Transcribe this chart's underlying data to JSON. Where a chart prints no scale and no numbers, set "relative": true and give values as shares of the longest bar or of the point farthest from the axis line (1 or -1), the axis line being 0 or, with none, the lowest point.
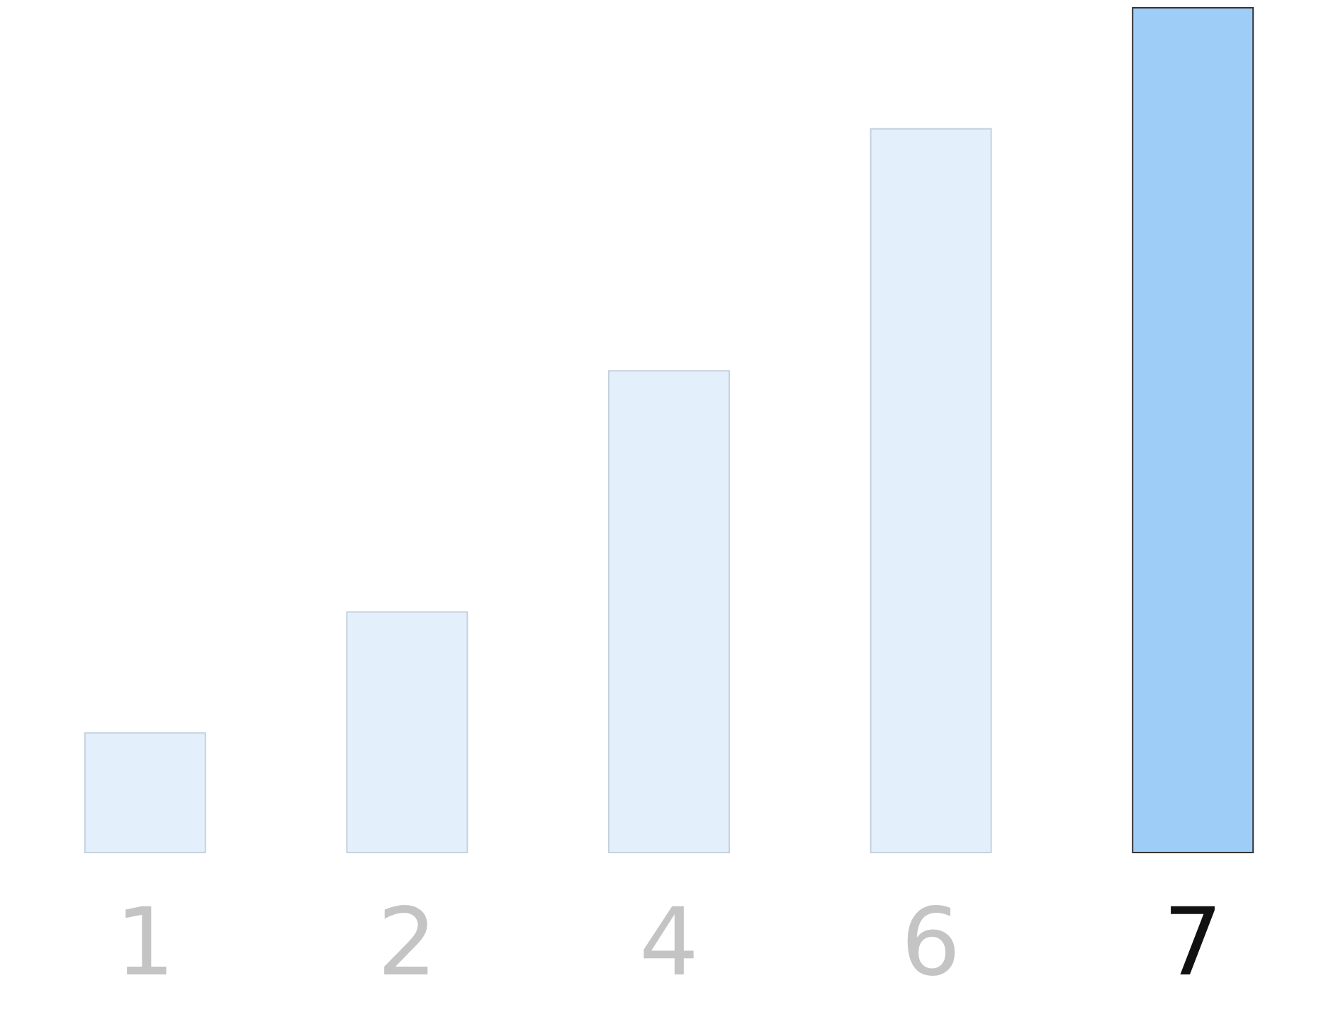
{
  "chart_data": {
    "type": "bar",
    "relative": true,
    "categories": [
      "1",
      "2",
      "4",
      "6",
      "7"
    ],
    "values": [
      0.143,
      0.286,
      0.571,
      0.857,
      1
    ],
    "colors": [
      "#e3effb",
      "#e3effb",
      "#e3effb",
      "#e3effb",
      "#9ecdf7"
    ]
  }
}
